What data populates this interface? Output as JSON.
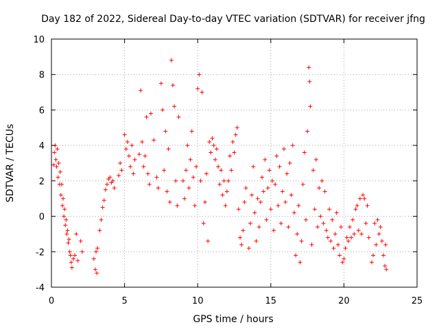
{
  "chart_data": {
    "type": "scatter",
    "title": "Day 182 of 2022, Sidereal Day-to-day VTEC variation (SDTVAR) for receiver jfng",
    "xlabel": "GPS time / hours",
    "ylabel": "SDTVAR / TECUs",
    "xlim": [
      0,
      25
    ],
    "ylim": [
      -4,
      10
    ],
    "xticks": [
      0,
      5,
      10,
      15,
      20,
      25
    ],
    "yticks": [
      -4,
      -2,
      0,
      2,
      4,
      6,
      8,
      10
    ],
    "grid": true,
    "marker": "+",
    "color": "#ff0000",
    "series": [
      {
        "name": "SDTVAR",
        "points": [
          [
            0.15,
            2.9
          ],
          [
            0.2,
            3.6
          ],
          [
            0.25,
            4.0
          ],
          [
            0.3,
            3.2
          ],
          [
            0.35,
            2.8
          ],
          [
            0.4,
            3.8
          ],
          [
            0.45,
            2.2
          ],
          [
            0.5,
            3.0
          ],
          [
            0.55,
            1.8
          ],
          [
            0.6,
            2.5
          ],
          [
            0.65,
            1.2
          ],
          [
            0.7,
            1.8
          ],
          [
            0.75,
            0.6
          ],
          [
            0.8,
            1.0
          ],
          [
            0.85,
            0.0
          ],
          [
            0.9,
            0.4
          ],
          [
            0.95,
            -0.5
          ],
          [
            1.0,
            -0.2
          ],
          [
            1.05,
            -1.0
          ],
          [
            1.1,
            -0.8
          ],
          [
            1.15,
            -1.5
          ],
          [
            1.2,
            -1.3
          ],
          [
            1.25,
            -2.0
          ],
          [
            1.3,
            -2.2
          ],
          [
            1.35,
            -2.6
          ],
          [
            1.4,
            -2.9
          ],
          [
            1.5,
            -2.4
          ],
          [
            1.6,
            -2.2
          ],
          [
            1.7,
            -1.0
          ],
          [
            1.8,
            -2.5
          ],
          [
            2.0,
            -1.4
          ],
          [
            2.1,
            -2.0
          ],
          [
            2.9,
            -2.4
          ],
          [
            3.0,
            -3.0
          ],
          [
            3.05,
            -2.0
          ],
          [
            3.1,
            -3.2
          ],
          [
            3.15,
            -1.8
          ],
          [
            3.3,
            -0.8
          ],
          [
            3.4,
            -0.2
          ],
          [
            3.5,
            0.5
          ],
          [
            3.6,
            0.9
          ],
          [
            3.7,
            1.5
          ],
          [
            3.8,
            1.8
          ],
          [
            3.9,
            2.1
          ],
          [
            4.0,
            2.2
          ],
          [
            4.1,
            1.9
          ],
          [
            4.2,
            2.0
          ],
          [
            4.3,
            1.6
          ],
          [
            4.6,
            2.3
          ],
          [
            4.7,
            3.0
          ],
          [
            4.8,
            2.6
          ],
          [
            5.0,
            4.6
          ],
          [
            5.1,
            3.8
          ],
          [
            5.2,
            4.2
          ],
          [
            5.3,
            3.4
          ],
          [
            5.4,
            2.8
          ],
          [
            5.5,
            4.0
          ],
          [
            5.6,
            2.4
          ],
          [
            5.7,
            3.2
          ],
          [
            6.0,
            3.5
          ],
          [
            6.1,
            7.1
          ],
          [
            6.2,
            4.2
          ],
          [
            6.3,
            2.8
          ],
          [
            6.4,
            3.4
          ],
          [
            6.5,
            5.6
          ],
          [
            6.6,
            2.4
          ],
          [
            6.7,
            1.8
          ],
          [
            6.8,
            5.8
          ],
          [
            7.0,
            4.3
          ],
          [
            7.2,
            2.2
          ],
          [
            7.3,
            1.6
          ],
          [
            7.5,
            7.5
          ],
          [
            7.6,
            6.0
          ],
          [
            7.7,
            2.6
          ],
          [
            7.8,
            4.8
          ],
          [
            7.9,
            1.4
          ],
          [
            8.0,
            3.8
          ],
          [
            8.1,
            0.8
          ],
          [
            8.2,
            8.8
          ],
          [
            8.3,
            7.4
          ],
          [
            8.4,
            6.2
          ],
          [
            8.5,
            2.0
          ],
          [
            8.6,
            0.6
          ],
          [
            8.7,
            5.6
          ],
          [
            9.0,
            2.0
          ],
          [
            9.1,
            1.0
          ],
          [
            9.2,
            2.6
          ],
          [
            9.3,
            4.0
          ],
          [
            9.4,
            1.6
          ],
          [
            9.5,
            3.2
          ],
          [
            9.6,
            4.8
          ],
          [
            9.7,
            2.2
          ],
          [
            9.8,
            0.6
          ],
          [
            9.9,
            2.8
          ],
          [
            10.0,
            7.2
          ],
          [
            10.1,
            8.0
          ],
          [
            10.2,
            2.0
          ],
          [
            10.3,
            7.0
          ],
          [
            10.4,
            -0.4
          ],
          [
            10.5,
            0.8
          ],
          [
            10.6,
            2.4
          ],
          [
            10.7,
            -1.4
          ],
          [
            10.8,
            4.2
          ],
          [
            10.9,
            3.6
          ],
          [
            11.0,
            4.4
          ],
          [
            11.1,
            4.0
          ],
          [
            11.2,
            3.2
          ],
          [
            11.3,
            3.8
          ],
          [
            11.4,
            2.8
          ],
          [
            11.5,
            1.8
          ],
          [
            11.6,
            2.6
          ],
          [
            11.7,
            1.2
          ],
          [
            11.8,
            2.0
          ],
          [
            11.9,
            0.6
          ],
          [
            12.0,
            1.4
          ],
          [
            12.1,
            2.0
          ],
          [
            12.2,
            3.4
          ],
          [
            12.3,
            2.6
          ],
          [
            12.4,
            4.2
          ],
          [
            12.5,
            3.6
          ],
          [
            12.6,
            4.6
          ],
          [
            12.7,
            5.0
          ],
          [
            12.8,
            0.4
          ],
          [
            12.9,
            -1.2
          ],
          [
            13.0,
            -1.6
          ],
          [
            13.1,
            -0.8
          ],
          [
            13.2,
            0.8
          ],
          [
            13.3,
            1.6
          ],
          [
            13.5,
            -1.8
          ],
          [
            13.6,
            -0.4
          ],
          [
            13.7,
            1.2
          ],
          [
            13.8,
            2.8
          ],
          [
            13.9,
            0.2
          ],
          [
            14.0,
            -1.4
          ],
          [
            14.1,
            1.0
          ],
          [
            14.2,
            -0.6
          ],
          [
            14.3,
            0.8
          ],
          [
            14.4,
            2.2
          ],
          [
            14.5,
            1.4
          ],
          [
            14.6,
            3.2
          ],
          [
            14.7,
            -0.2
          ],
          [
            14.8,
            1.6
          ],
          [
            14.9,
            2.6
          ],
          [
            15.0,
            0.4
          ],
          [
            15.1,
            2.0
          ],
          [
            15.2,
            -0.8
          ],
          [
            15.3,
            1.8
          ],
          [
            15.4,
            3.4
          ],
          [
            15.5,
            0.6
          ],
          [
            15.6,
            2.8
          ],
          [
            15.7,
            -0.4
          ],
          [
            15.8,
            1.4
          ],
          [
            15.9,
            3.8
          ],
          [
            16.0,
            0.8
          ],
          [
            16.1,
            2.4
          ],
          [
            16.2,
            -0.6
          ],
          [
            16.3,
            3.0
          ],
          [
            16.4,
            1.2
          ],
          [
            16.5,
            4.0
          ],
          [
            16.6,
            0.2
          ],
          [
            16.7,
            -2.2
          ],
          [
            16.8,
            -1.0
          ],
          [
            16.9,
            0.6
          ],
          [
            17.0,
            -2.6
          ],
          [
            17.1,
            -1.4
          ],
          [
            17.2,
            1.8
          ],
          [
            17.3,
            3.6
          ],
          [
            17.4,
            -0.2
          ],
          [
            17.5,
            4.8
          ],
          [
            17.6,
            8.4
          ],
          [
            17.65,
            7.6
          ],
          [
            17.7,
            6.2
          ],
          [
            17.8,
            -1.6
          ],
          [
            17.9,
            2.6
          ],
          [
            18.0,
            0.4
          ],
          [
            18.1,
            3.2
          ],
          [
            18.2,
            -0.6
          ],
          [
            18.3,
            1.6
          ],
          [
            18.4,
            0.0
          ],
          [
            18.5,
            2.0
          ],
          [
            18.6,
            -0.4
          ],
          [
            18.7,
            1.4
          ],
          [
            18.8,
            -0.8
          ],
          [
            18.9,
            -1.2
          ],
          [
            19.0,
            0.4
          ],
          [
            19.1,
            -1.4
          ],
          [
            19.2,
            -0.2
          ],
          [
            19.3,
            -1.8
          ],
          [
            19.4,
            -1.0
          ],
          [
            19.5,
            0.2
          ],
          [
            19.6,
            -1.6
          ],
          [
            19.7,
            -2.2
          ],
          [
            19.8,
            -0.6
          ],
          [
            19.9,
            -2.6
          ],
          [
            20.0,
            -2.4
          ],
          [
            20.1,
            -1.8
          ],
          [
            20.2,
            -1.2
          ],
          [
            20.3,
            -1.4
          ],
          [
            20.4,
            -0.6
          ],
          [
            20.5,
            -1.2
          ],
          [
            20.6,
            -0.2
          ],
          [
            20.7,
            -1.0
          ],
          [
            20.8,
            0.4
          ],
          [
            20.9,
            0.6
          ],
          [
            21.0,
            -0.8
          ],
          [
            21.1,
            1.0
          ],
          [
            21.2,
            -1.0
          ],
          [
            21.3,
            1.2
          ],
          [
            21.4,
            1.0
          ],
          [
            21.5,
            -0.4
          ],
          [
            21.6,
            0.6
          ],
          [
            21.7,
            -1.2
          ],
          [
            21.9,
            -2.6
          ],
          [
            22.0,
            -2.2
          ],
          [
            22.1,
            -0.4
          ],
          [
            22.2,
            -1.6
          ],
          [
            22.3,
            -0.2
          ],
          [
            22.4,
            -1.0
          ],
          [
            22.5,
            -0.6
          ],
          [
            22.6,
            -1.4
          ],
          [
            22.7,
            -2.2
          ],
          [
            22.8,
            -2.8
          ],
          [
            22.85,
            -1.6
          ],
          [
            22.9,
            -3.0
          ]
        ]
      }
    ]
  }
}
